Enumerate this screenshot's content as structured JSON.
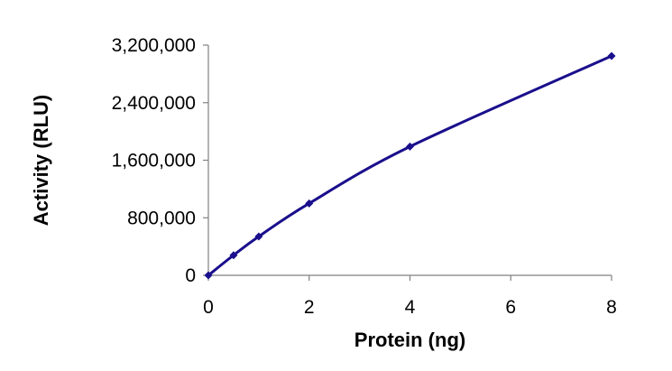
{
  "chart_data": {
    "type": "line",
    "title": "",
    "xlabel": "Protein (ng)",
    "ylabel": "Activity (RLU)",
    "xlim": [
      0,
      8
    ],
    "ylim": [
      0,
      3200000
    ],
    "x_ticks": [
      0,
      2,
      4,
      6,
      8
    ],
    "x_tick_labels": [
      "0",
      "2",
      "4",
      "6",
      "8"
    ],
    "y_ticks": [
      0,
      800000,
      1600000,
      2400000,
      3200000
    ],
    "y_tick_labels": [
      "0",
      "800,000",
      "1,600,000",
      "2,400,000",
      "3,200,000"
    ],
    "grid": false,
    "legend": "none",
    "series": [
      {
        "color": "#1a0f8c",
        "marker": "diamond",
        "smooth": true,
        "x": [
          0,
          0.5,
          1,
          2,
          4,
          8
        ],
        "y": [
          0,
          280000,
          540000,
          1000000,
          1790000,
          3050000
        ]
      }
    ]
  }
}
